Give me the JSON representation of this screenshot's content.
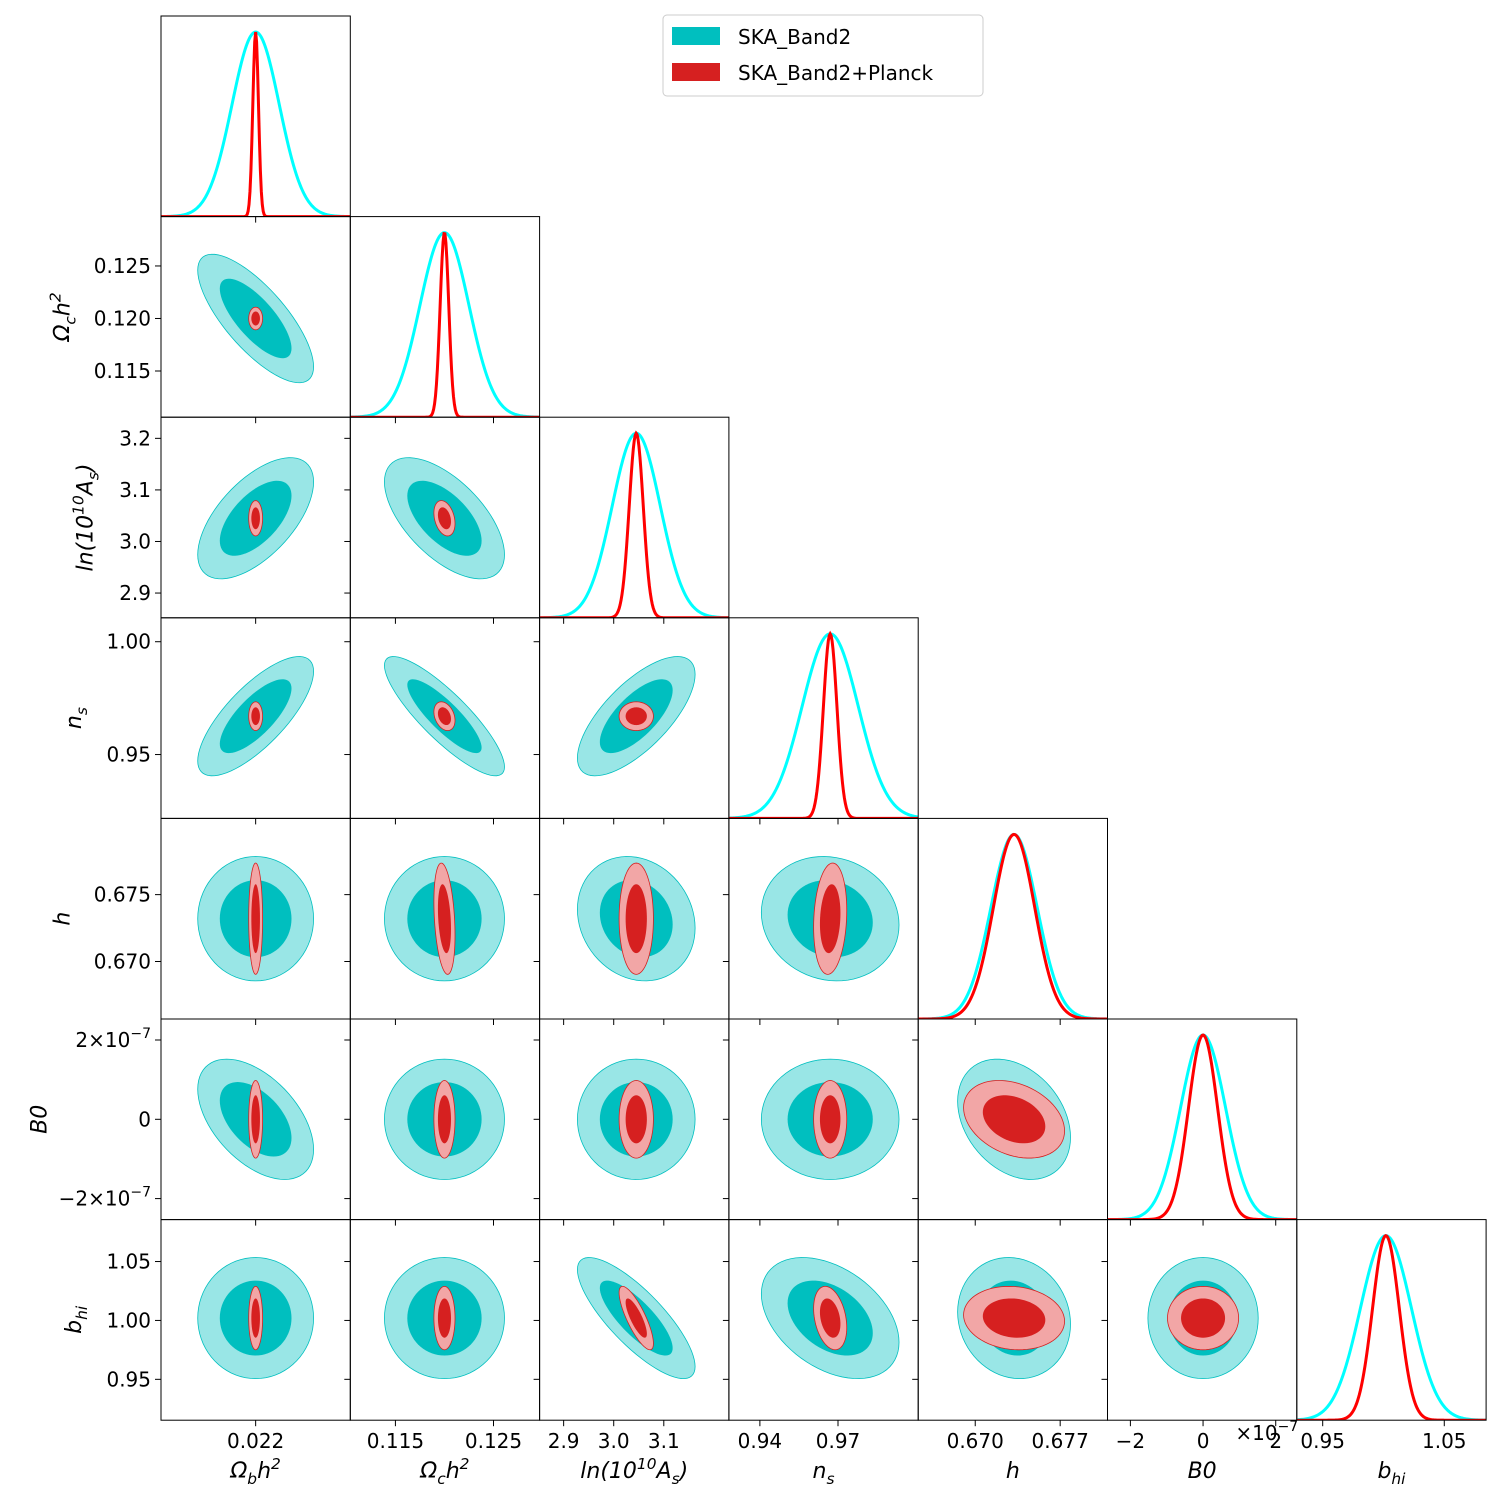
{
  "chart_data": {
    "type": "triangle",
    "params": [
      {
        "label": "Ω_{b}h^{2}",
        "xlim": [
          0.0215,
          0.0225
        ],
        "xticks": [
          0.022
        ]
      },
      {
        "label": "Ω_{c}h^{2}",
        "xlim": [
          0.1104,
          0.1297
        ],
        "xticks": [
          0.115,
          0.125
        ],
        "ylim": [
          0.1106,
          0.1297
        ],
        "yticks": [
          0.115,
          {
            "value": 0.12,
            "label": "0.120"
          },
          0.125
        ]
      },
      {
        "label": "ln(10^{10}A_{s})",
        "xlim": [
          2.852,
          3.23
        ],
        "xticks": [
          2.9,
          {
            "value": 3,
            "label": "3.0"
          },
          3.1
        ],
        "ylim": [
          2.852,
          3.241
        ],
        "yticks": [
          2.9,
          {
            "value": 3,
            "label": "3.0"
          },
          3.1,
          3.2
        ]
      },
      {
        "label": "n_{s}",
        "xlim": [
          0.9281,
          1.0008
        ],
        "xticks": [
          0.94,
          0.97
        ],
        "ylim": [
          0.9217,
          1.0106
        ],
        "yticks": [
          0.95,
          {
            "value": 1,
            "label": "1.00"
          }
        ]
      },
      {
        "label": "h",
        "xlim": [
          0.6653,
          0.6809
        ],
        "xticks": [
          {
            "value": 0.67,
            "label": "0.670"
          },
          0.677
        ],
        "ylim": [
          0.6657,
          0.6807
        ],
        "yticks": [
          {
            "value": 0.67,
            "label": "0.670"
          },
          0.675
        ]
      },
      {
        "label": "B0",
        "xlim": [
          -2.63e-07,
          2.58e-07
        ],
        "xticks": [
          {
            "value": -2e-07,
            "label": "−2"
          },
          0,
          {
            "value": 2e-07,
            "label": "2"
          }
        ],
        "x_offset_label": "×10^{−7}",
        "ylim": [
          -2.53e-07,
          2.53e-07
        ],
        "yticks": [
          {
            "value": -2e-07,
            "label": "−2×10^{−7}"
          },
          0,
          {
            "value": 2e-07,
            "label": "2×10^{−7}"
          }
        ]
      },
      {
        "label": "b_{hi}",
        "xlim": [
          0.9287,
          1.0844
        ],
        "xticks": [
          0.95,
          1.05
        ],
        "ylim": [
          0.9153,
          1.0856
        ],
        "yticks": [
          0.95,
          {
            "value": 1,
            "label": "1.00"
          },
          1.05
        ]
      }
    ],
    "series": [
      {
        "name": "SKA_Band2",
        "color": "#00bfbf",
        "outer_color": "#99e6e6",
        "line_color": "#00ffff",
        "means": [
          0.022,
          0.12,
          3.045,
          0.967,
          0.6732,
          0,
          1.002
        ],
        "sigmas": [
          0.000125,
          0.0025,
          0.048,
          0.0108,
          0.0019,
          6.2e-08,
          0.021
        ],
        "correlations": [
          [],
          [
            -0.75
          ],
          [
            0.6,
            -0.6
          ],
          [
            0.75,
            -0.85,
            0.7
          ],
          [
            0,
            0,
            -0.15,
            -0.1
          ],
          [
            -0.5,
            0,
            0,
            0,
            -0.3
          ],
          [
            0,
            0,
            -0.8,
            -0.4,
            -0.1,
            0
          ]
        ]
      },
      {
        "name": "SKA_Band2+Planck",
        "color": "#d62020",
        "outer_color": "#f2a6a6",
        "line_color": "#ff0000",
        "means": [
          0.022,
          0.12,
          3.045,
          0.967,
          0.6732,
          0,
          1.002
        ],
        "sigmas": [
          1.5e-05,
          0.00044,
          0.014,
          0.0026,
          0.0017,
          4e-08,
          0.011
        ],
        "correlations": [
          [],
          [
            0
          ],
          [
            0,
            -0.3
          ],
          [
            0,
            -0.3,
            0
          ],
          [
            0,
            -0.3,
            0,
            0.15
          ],
          [
            0,
            0,
            0,
            0,
            -0.3
          ],
          [
            0,
            0,
            -0.8,
            -0.3,
            -0.1,
            0
          ]
        ]
      }
    ]
  }
}
